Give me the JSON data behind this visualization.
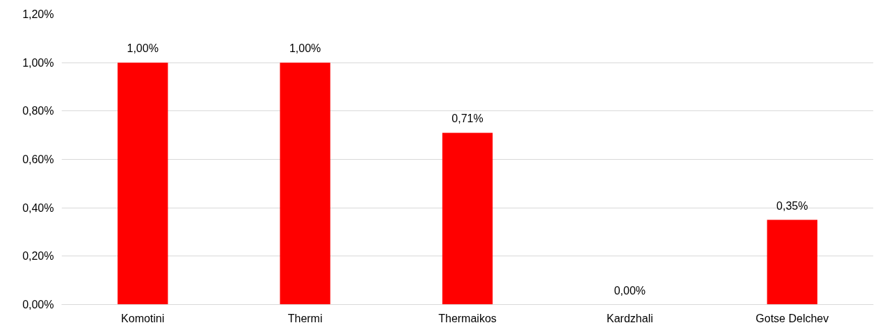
{
  "chart_data": {
    "type": "bar",
    "categories": [
      "Komotini",
      "Thermi",
      "Thermaikos",
      "Kardzhali",
      "Gotse Delchev"
    ],
    "values": [
      1.0,
      1.0,
      0.71,
      0.0,
      0.35
    ],
    "value_labels": [
      "1,00%",
      "1,00%",
      "0,71%",
      "0,00%",
      "0,35%"
    ],
    "color": "#ff0000",
    "ylim": [
      0,
      1.2
    ],
    "yticks": [
      {
        "value": 0,
        "label": "0,00%"
      },
      {
        "value": 0.2,
        "label": "0,20%"
      },
      {
        "value": 0.4,
        "label": "0,40%"
      },
      {
        "value": 0.6,
        "label": "0,60%"
      },
      {
        "value": 0.8,
        "label": "0,80%"
      },
      {
        "value": 1.0,
        "label": "1,00%"
      },
      {
        "value": 1.2,
        "label": "1,20%"
      }
    ],
    "grid": "y"
  }
}
